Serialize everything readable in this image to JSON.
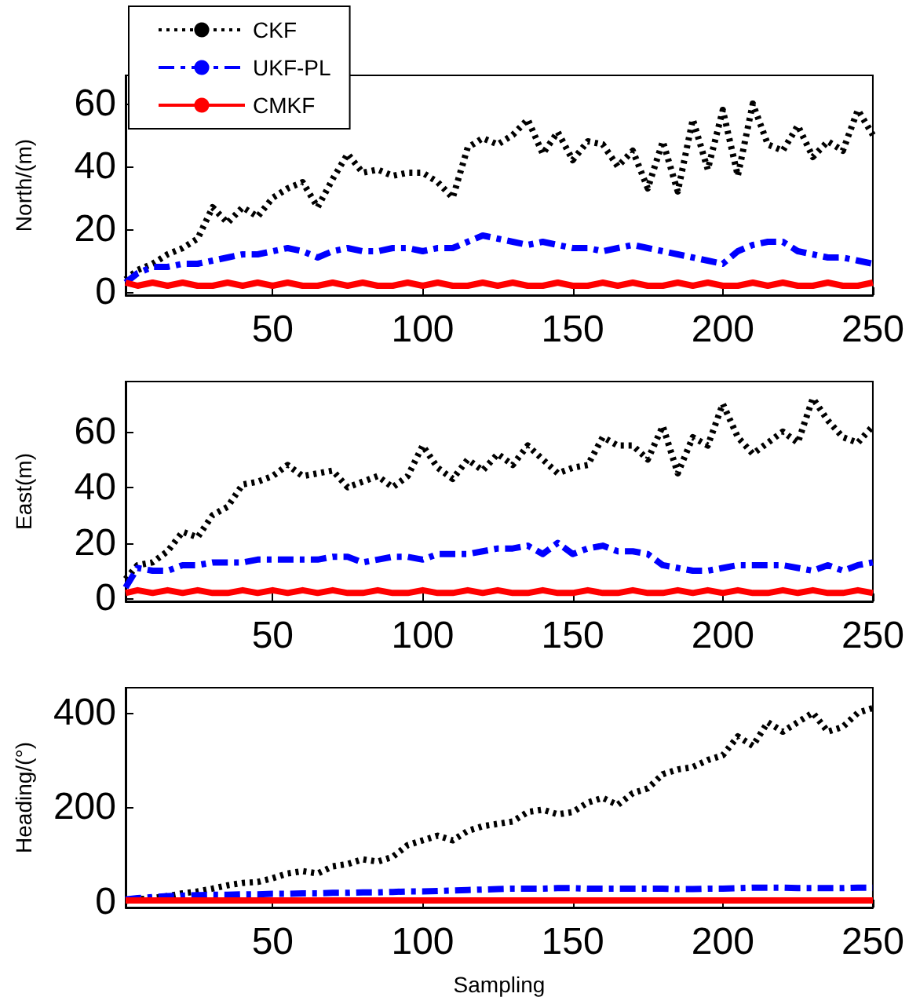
{
  "chart_data": [
    {
      "type": "line",
      "ylabel": "North/(m)",
      "legend": "top left",
      "x": [
        1,
        5,
        10,
        15,
        20,
        25,
        30,
        35,
        40,
        45,
        50,
        55,
        60,
        65,
        70,
        75,
        80,
        85,
        90,
        95,
        100,
        105,
        110,
        115,
        120,
        125,
        130,
        135,
        140,
        145,
        150,
        155,
        160,
        165,
        170,
        175,
        180,
        185,
        190,
        195,
        200,
        205,
        210,
        215,
        220,
        225,
        230,
        235,
        240,
        245,
        250
      ],
      "xlim": [
        1,
        250
      ],
      "xticks": [
        50,
        100,
        150,
        200,
        250
      ],
      "ylim": [
        -1,
        69
      ],
      "yticks": [
        0,
        20,
        40,
        60
      ],
      "series": [
        {
          "name": "CKF",
          "color": "#000000",
          "line_style": "dotted",
          "values": [
            4,
            7,
            9,
            12,
            14,
            17,
            27,
            22,
            27,
            24,
            30,
            33,
            35,
            27,
            36,
            44,
            38,
            39,
            37,
            38,
            38,
            35,
            30,
            46,
            49,
            47,
            50,
            55,
            44,
            51,
            42,
            48,
            47,
            40,
            45,
            33,
            48,
            32,
            55,
            39,
            58,
            37,
            60,
            47,
            45,
            53,
            43,
            48,
            45,
            58,
            50
          ]
        },
        {
          "name": "UKF-PL",
          "color": "#0000ff",
          "line_style": "dashdot",
          "values": [
            3,
            6,
            8,
            8,
            9,
            9,
            10,
            11,
            12,
            12,
            13,
            14,
            13,
            11,
            13,
            14,
            13,
            13,
            14,
            14,
            13,
            14,
            14,
            16,
            18,
            17,
            16,
            15,
            16,
            15,
            14,
            14,
            13,
            14,
            15,
            14,
            13,
            12,
            11,
            10,
            9,
            13,
            15,
            16,
            16,
            13,
            12,
            11,
            11,
            10,
            9
          ]
        },
        {
          "name": "CMKF",
          "color": "#ff0000",
          "line_style": "solid",
          "values": [
            3,
            2,
            3,
            2,
            3,
            2,
            2,
            3,
            2,
            3,
            2,
            3,
            2,
            2,
            3,
            2,
            3,
            2,
            2,
            3,
            2,
            3,
            2,
            2,
            3,
            2,
            3,
            2,
            2,
            3,
            2,
            2,
            3,
            2,
            3,
            2,
            2,
            3,
            2,
            3,
            2,
            2,
            3,
            2,
            3,
            2,
            2,
            3,
            2,
            2,
            3
          ]
        }
      ]
    },
    {
      "type": "line",
      "ylabel": "East(m)",
      "x": [
        1,
        5,
        10,
        15,
        20,
        25,
        30,
        35,
        40,
        45,
        50,
        55,
        60,
        65,
        70,
        75,
        80,
        85,
        90,
        95,
        100,
        105,
        110,
        115,
        120,
        125,
        130,
        135,
        140,
        145,
        150,
        155,
        160,
        165,
        170,
        175,
        180,
        185,
        190,
        195,
        200,
        205,
        210,
        215,
        220,
        225,
        230,
        235,
        240,
        245,
        250
      ],
      "xlim": [
        1,
        250
      ],
      "xticks": [
        50,
        100,
        150,
        200,
        250
      ],
      "ylim": [
        -1,
        78
      ],
      "yticks": [
        0,
        20,
        40,
        60
      ],
      "series": [
        {
          "color": "#000000",
          "line_style": "dotted",
          "values": [
            7,
            12,
            13,
            17,
            24,
            22,
            30,
            33,
            41,
            42,
            44,
            48,
            44,
            45,
            46,
            40,
            42,
            44,
            40,
            44,
            55,
            47,
            43,
            50,
            46,
            52,
            48,
            55,
            50,
            45,
            47,
            48,
            58,
            55,
            55,
            50,
            62,
            45,
            58,
            55,
            70,
            58,
            52,
            56,
            60,
            56,
            72,
            64,
            58,
            56,
            62
          ]
        },
        {
          "color": "#0000ff",
          "line_style": "dashdot",
          "values": [
            4,
            11,
            10,
            10,
            12,
            12,
            13,
            13,
            13,
            14,
            14,
            14,
            14,
            14,
            15,
            15,
            13,
            14,
            15,
            15,
            14,
            16,
            16,
            16,
            17,
            18,
            18,
            19,
            16,
            20,
            16,
            18,
            19,
            17,
            17,
            16,
            12,
            11,
            10,
            10,
            11,
            12,
            12,
            12,
            12,
            11,
            10,
            12,
            10,
            12,
            13
          ]
        },
        {
          "color": "#ff0000",
          "line_style": "solid",
          "values": [
            2,
            3,
            2,
            3,
            2,
            3,
            2,
            2,
            3,
            2,
            3,
            2,
            3,
            2,
            3,
            2,
            2,
            3,
            2,
            2,
            3,
            2,
            2,
            3,
            2,
            3,
            2,
            2,
            3,
            2,
            2,
            3,
            2,
            2,
            3,
            2,
            2,
            3,
            2,
            3,
            2,
            3,
            2,
            2,
            3,
            2,
            3,
            2,
            2,
            3,
            2
          ]
        }
      ]
    },
    {
      "type": "line",
      "ylabel": "Heading/(°)",
      "xlabel": "Sampling",
      "x": [
        1,
        5,
        10,
        15,
        20,
        25,
        30,
        35,
        40,
        45,
        50,
        55,
        60,
        65,
        70,
        75,
        80,
        85,
        90,
        95,
        100,
        105,
        110,
        115,
        120,
        125,
        130,
        135,
        140,
        145,
        150,
        155,
        160,
        165,
        170,
        175,
        180,
        185,
        190,
        195,
        200,
        205,
        210,
        215,
        220,
        225,
        230,
        235,
        240,
        245,
        250
      ],
      "xlim": [
        1,
        250
      ],
      "xticks": [
        50,
        100,
        150,
        200,
        250
      ],
      "ylim": [
        -12,
        453
      ],
      "yticks": [
        0,
        200,
        400
      ],
      "series": [
        {
          "color": "#000000",
          "line_style": "dotted",
          "values": [
            2,
            5,
            8,
            12,
            18,
            22,
            28,
            35,
            40,
            42,
            50,
            60,
            65,
            60,
            75,
            80,
            90,
            85,
            95,
            120,
            130,
            140,
            130,
            150,
            160,
            165,
            170,
            190,
            195,
            185,
            190,
            210,
            220,
            205,
            230,
            240,
            270,
            280,
            285,
            300,
            310,
            350,
            330,
            380,
            360,
            380,
            400,
            360,
            370,
            400,
            410
          ]
        },
        {
          "color": "#0000ff",
          "line_style": "dashdot",
          "values": [
            5,
            8,
            10,
            12,
            13,
            14,
            15,
            15,
            16,
            16,
            17,
            17,
            18,
            18,
            19,
            19,
            20,
            20,
            21,
            22,
            22,
            23,
            24,
            25,
            26,
            27,
            28,
            28,
            28,
            29,
            29,
            28,
            28,
            28,
            28,
            28,
            28,
            27,
            27,
            28,
            28,
            29,
            30,
            30,
            30,
            29,
            29,
            29,
            29,
            30,
            30
          ]
        },
        {
          "color": "#ff0000",
          "line_style": "solid",
          "values": [
            3,
            3,
            3,
            3,
            3,
            3,
            3,
            3,
            3,
            3,
            3,
            3,
            3,
            3,
            3,
            3,
            3,
            3,
            3,
            3,
            3,
            3,
            3,
            3,
            3,
            3,
            3,
            3,
            3,
            3,
            3,
            3,
            3,
            3,
            3,
            3,
            3,
            3,
            3,
            3,
            3,
            3,
            3,
            3,
            3,
            3,
            3,
            3,
            3,
            3,
            3
          ]
        }
      ]
    }
  ]
}
